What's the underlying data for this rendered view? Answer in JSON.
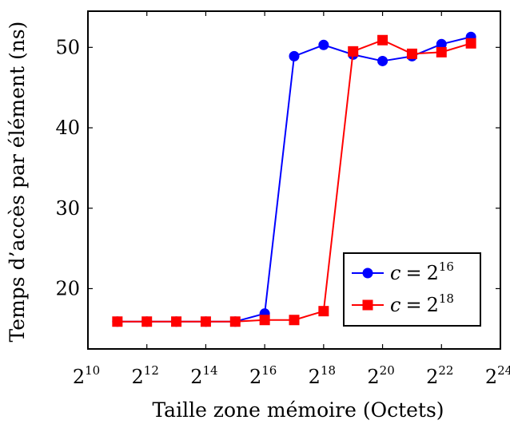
{
  "chart_data": {
    "type": "line",
    "xlabel": "Taille zone mémoire (Octets)",
    "ylabel": "Temps d’accès par élément (ns)",
    "x_scale": "log2",
    "xlim_exponent": [
      10,
      24
    ],
    "x_tick_base": "2",
    "x_tick_exponents": [
      "10",
      "12",
      "14",
      "16",
      "18",
      "20",
      "22",
      "24"
    ],
    "ylim": [
      12.5,
      54.5
    ],
    "y_ticks": [
      "20",
      "30",
      "40",
      "50"
    ],
    "legend_position": "bottom-right",
    "series": [
      {
        "legend_var": "c",
        "legend_eq": "=",
        "legend_base": "2",
        "legend_exp": "16",
        "color": "#0000ff",
        "marker": "circle",
        "x_exponents": [
          11,
          12,
          13,
          14,
          15,
          16,
          17,
          18,
          19,
          20,
          21,
          22,
          23
        ],
        "values": [
          15.9,
          15.9,
          15.9,
          15.9,
          15.9,
          16.9,
          48.9,
          50.3,
          49.1,
          48.3,
          48.9,
          50.4,
          51.3
        ]
      },
      {
        "legend_var": "c",
        "legend_eq": "=",
        "legend_base": "2",
        "legend_exp": "18",
        "color": "#ff0000",
        "marker": "square",
        "x_exponents": [
          11,
          12,
          13,
          14,
          15,
          16,
          17,
          18,
          19,
          20,
          21,
          22,
          23
        ],
        "values": [
          15.9,
          15.9,
          15.9,
          15.9,
          15.9,
          16.1,
          16.1,
          17.2,
          49.5,
          50.9,
          49.2,
          49.4,
          50.5
        ]
      }
    ]
  }
}
